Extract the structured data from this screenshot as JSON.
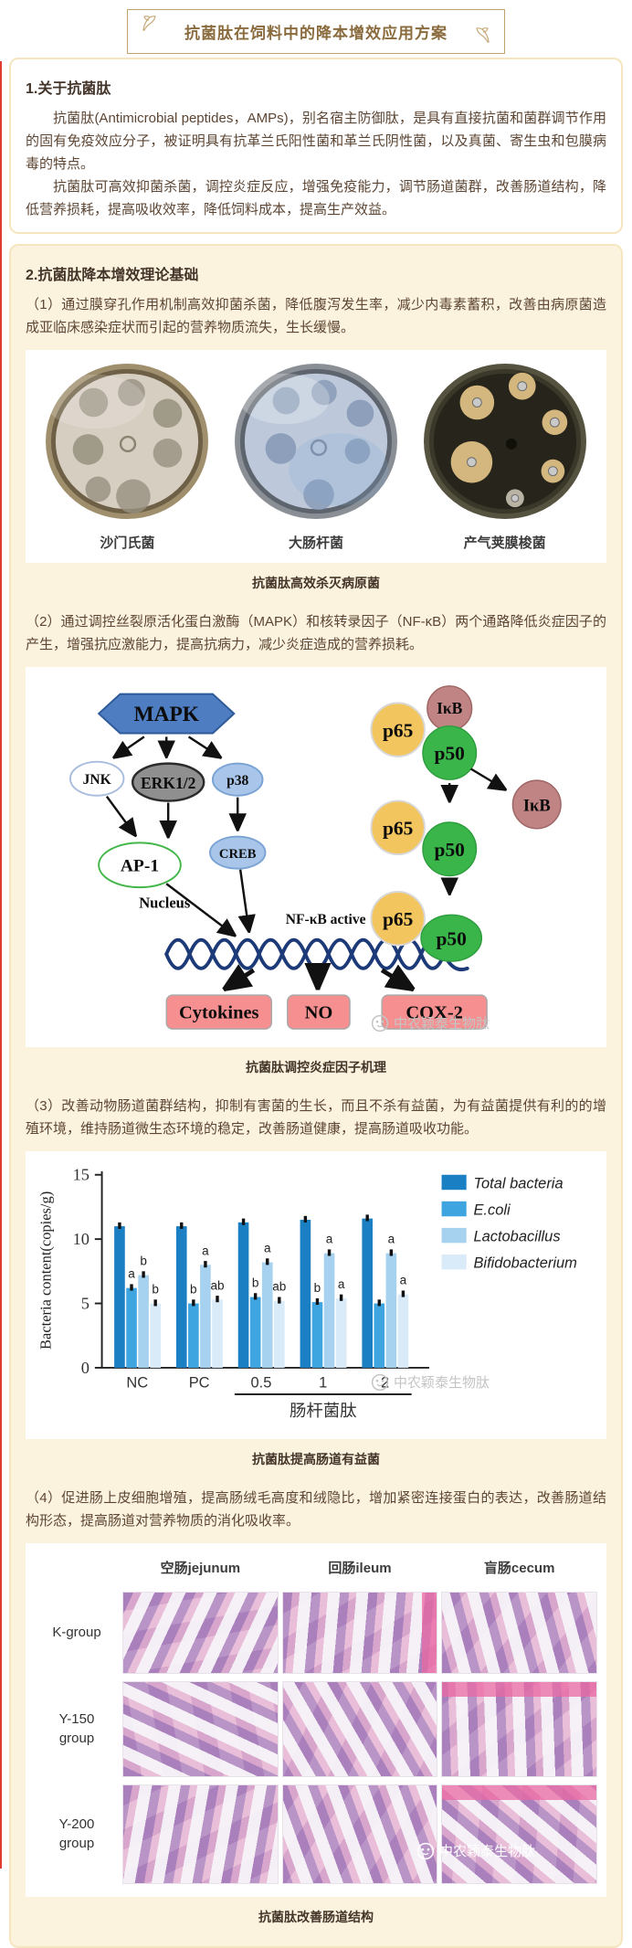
{
  "page": {
    "watermark_text": "中农颖泰生物肽",
    "accent_color": "#e23b2e"
  },
  "header": {
    "title": "抗菌肽在饲料中的降本增效应用方案"
  },
  "section1": {
    "title": "1.关于抗菌肽",
    "paragraphs": [
      "抗菌肽(Antimicrobial peptides，AMPs)，别名宿主防御肽，是具有直接抗菌和菌群调节作用的固有免疫效应分子，被证明具有抗革兰氏阳性菌和革兰氏阴性菌，以及真菌、寄生虫和包膜病毒的特点。",
      "抗菌肽可高效抑菌杀菌，调控炎症反应，增强免疫能力，调节肠道菌群，改善肠道结构，降低营养损耗，提高吸收效率，降低饲料成本，提高生产效益。"
    ]
  },
  "section2": {
    "title": "2.抗菌肽降本增效理论基础",
    "point1": "（1）通过膜穿孔作用机制高效抑菌杀菌，降低腹泻发生率，减少内毒素蓄积，改善由病原菌造成亚临床感染症状而引起的营养物质流失，生长缓慢。",
    "petri_labels": [
      "沙门氏菌",
      "大肠杆菌",
      "产气荚膜梭菌"
    ],
    "petri_caption": "抗菌肽高效杀灭病原菌",
    "point2": "（2）通过调控丝裂原活化蛋白激酶（MAPK）和核转录因子（NF-κB）两个通路降低炎症因子的产生，增强抗应激能力，提高抗病力，减少炎症造成的营养损耗。",
    "pathway": {
      "mapk": "MAPK",
      "jnk": "JNK",
      "erk": "ERK1/2",
      "p38": "p38",
      "ap1": "AP-1",
      "creb": "CREB",
      "p65": "p65",
      "p50": "p50",
      "ikb": "IκB",
      "nfkb_active": "NF-κB active",
      "nucleus": "Nucleus",
      "outputs": [
        "Cytokines",
        "NO",
        "COX-2"
      ],
      "caption": "抗菌肽调控炎症因子机理"
    },
    "point3": "（3）改善动物肠道菌群结构，抑制有害菌的生长，而且不杀有益菌，为有益菌提供有利的的增殖环境，维持肠道微生态环境的稳定，改善肠道健康，提高肠道吸收功能。",
    "chart_caption": "抗菌肽提高肠道有益菌",
    "point4": "（4）促进肠上皮细胞增殖，提高肠绒毛高度和绒隐比，增加紧密连接蛋白的表达，改善肠道结构形态，提高肠道对营养物质的消化吸收率。",
    "histology": {
      "columns": [
        "空肠jejunum",
        "回肠ileum",
        "盲肠cecum"
      ],
      "rows": [
        "K-group",
        "Y-150 group",
        "Y-200 group"
      ],
      "caption": "抗菌肽改善肠道结构"
    }
  },
  "chart_data": {
    "type": "bar",
    "title": "",
    "xlabel": "",
    "ylabel": "Bacteria content(copies/g)",
    "ylim": [
      0,
      15
    ],
    "yticks": [
      0,
      5,
      10,
      15
    ],
    "categories": [
      "NC",
      "PC",
      "0.5",
      "1",
      "2"
    ],
    "treatment_label": "肠杆菌肽",
    "treatment_groups": [
      "0.5",
      "1",
      "2"
    ],
    "error_bar": 0.3,
    "grid": false,
    "legend_position": "top-right",
    "series": [
      {
        "name": "Total bacteria",
        "color": "#1b7fc4",
        "values": [
          11.0,
          11.0,
          11.3,
          11.5,
          11.6
        ],
        "letters": [
          "",
          "",
          "",
          "",
          ""
        ]
      },
      {
        "name": "E.coli",
        "color": "#3fa5e0",
        "values": [
          6.2,
          5.0,
          5.5,
          5.1,
          5.0
        ],
        "letters": [
          "a",
          "b",
          "b",
          "b",
          ""
        ]
      },
      {
        "name": "Lactobacillus",
        "color": "#a7d2ef",
        "values": [
          7.2,
          8.0,
          8.2,
          8.9,
          8.9
        ],
        "letters": [
          "b",
          "a",
          "a",
          "a",
          "a"
        ]
      },
      {
        "name": "Bifidobacterium",
        "color": "#d9eaf8",
        "values": [
          5.0,
          5.3,
          5.2,
          5.4,
          5.7
        ],
        "letters": [
          "b",
          "ab",
          "ab",
          "a",
          "a"
        ]
      }
    ]
  }
}
